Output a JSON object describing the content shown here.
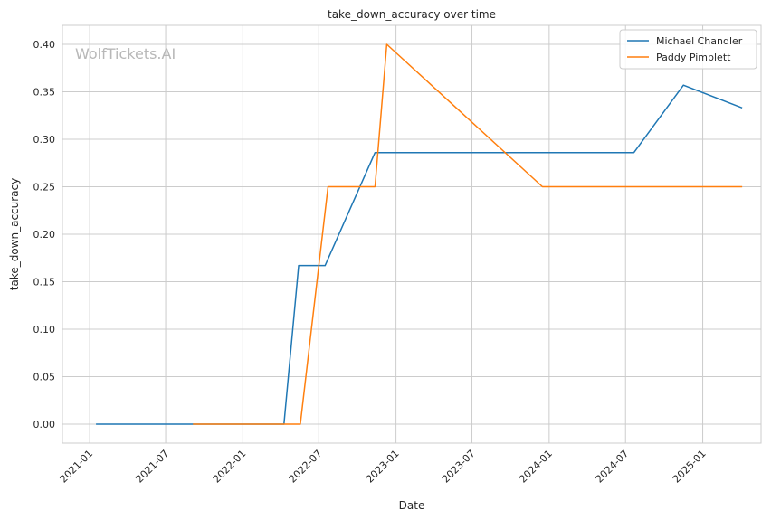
{
  "chart_data": {
    "type": "line",
    "title": "take_down_accuracy over time",
    "xlabel": "Date",
    "ylabel": "take_down_accuracy",
    "watermark": "WolfTickets.AI",
    "x_ticks": [
      "2021-01",
      "2021-07",
      "2022-01",
      "2022-07",
      "2023-01",
      "2023-07",
      "2024-01",
      "2024-07",
      "2025-01"
    ],
    "y_ticks": [
      "0.00",
      "0.05",
      "0.10",
      "0.15",
      "0.20",
      "0.25",
      "0.30",
      "0.35",
      "0.40"
    ],
    "xlim": [
      "2020-10-28",
      "2025-05-20"
    ],
    "ylim": [
      -0.02,
      0.42
    ],
    "grid": true,
    "legend_position": "top-right",
    "series": [
      {
        "name": "Michael Chandler",
        "color": "#1f77b4",
        "points": [
          [
            "2021-01-16",
            0.0
          ],
          [
            "2022-04-09",
            0.0
          ],
          [
            "2022-05-14",
            0.167
          ],
          [
            "2022-07-16",
            0.167
          ],
          [
            "2022-11-12",
            0.286
          ],
          [
            "2024-07-21",
            0.286
          ],
          [
            "2024-11-16",
            0.357
          ],
          [
            "2025-04-05",
            0.333
          ]
        ]
      },
      {
        "name": "Paddy Pimblett",
        "color": "#ff7f0e",
        "points": [
          [
            "2021-09-04",
            0.0
          ],
          [
            "2022-05-18",
            0.0
          ],
          [
            "2022-07-23",
            0.25
          ],
          [
            "2022-11-12",
            0.25
          ],
          [
            "2022-12-10",
            0.4
          ],
          [
            "2023-12-16",
            0.25
          ],
          [
            "2025-04-05",
            0.25
          ]
        ]
      }
    ]
  }
}
